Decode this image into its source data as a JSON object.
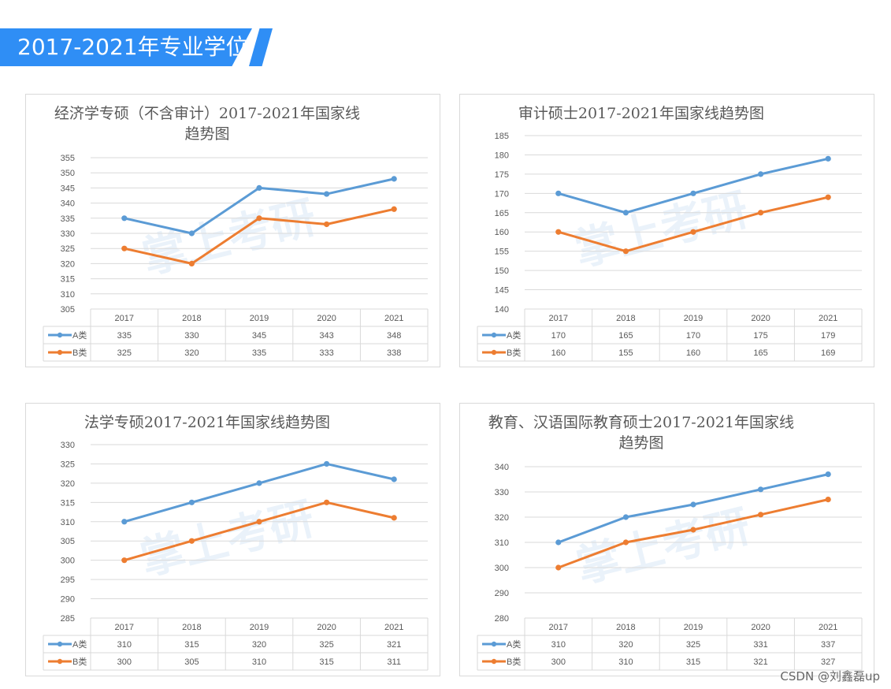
{
  "header": {
    "title": "2017-2021年专业学位"
  },
  "credit": "CSDN @刘鑫磊up",
  "watermark": "掌上考研",
  "chart_data": [
    {
      "type": "line",
      "title_lines": [
        "经济学专硕（不含审计）2017-2021年国家线",
        "趋势图"
      ],
      "categories": [
        "2017",
        "2018",
        "2019",
        "2020",
        "2021"
      ],
      "ylim": [
        305,
        355
      ],
      "ystep": 5,
      "series": [
        {
          "name": "A类",
          "color": "#5b9bd5",
          "values": [
            335,
            330,
            345,
            343,
            348
          ]
        },
        {
          "name": "B类",
          "color": "#ed7d31",
          "values": [
            325,
            320,
            335,
            333,
            338
          ]
        }
      ]
    },
    {
      "type": "line",
      "title_lines": [
        "审计硕士2017-2021年国家线趋势图"
      ],
      "categories": [
        "2017",
        "2018",
        "2019",
        "2020",
        "2021"
      ],
      "ylim": [
        140,
        185
      ],
      "ystep": 5,
      "series": [
        {
          "name": "A类",
          "color": "#5b9bd5",
          "values": [
            170,
            165,
            170,
            175,
            179
          ]
        },
        {
          "name": "B类",
          "color": "#ed7d31",
          "values": [
            160,
            155,
            160,
            165,
            169
          ]
        }
      ]
    },
    {
      "type": "line",
      "title_lines": [
        "法学专硕2017-2021年国家线趋势图"
      ],
      "categories": [
        "2017",
        "2018",
        "2019",
        "2020",
        "2021"
      ],
      "ylim": [
        285,
        330
      ],
      "ystep": 5,
      "series": [
        {
          "name": "A类",
          "color": "#5b9bd5",
          "values": [
            310,
            315,
            320,
            325,
            321
          ]
        },
        {
          "name": "B类",
          "color": "#ed7d31",
          "values": [
            300,
            305,
            310,
            315,
            311
          ]
        }
      ]
    },
    {
      "type": "line",
      "title_lines": [
        "教育、汉语国际教育硕士2017-2021年国家线",
        "趋势图"
      ],
      "categories": [
        "2017",
        "2018",
        "2019",
        "2020",
        "2021"
      ],
      "ylim": [
        280,
        340
      ],
      "ystep": 10,
      "series": [
        {
          "name": "A类",
          "color": "#5b9bd5",
          "values": [
            310,
            320,
            325,
            331,
            337
          ]
        },
        {
          "name": "B类",
          "color": "#ed7d31",
          "values": [
            300,
            310,
            315,
            321,
            327
          ]
        }
      ]
    }
  ]
}
